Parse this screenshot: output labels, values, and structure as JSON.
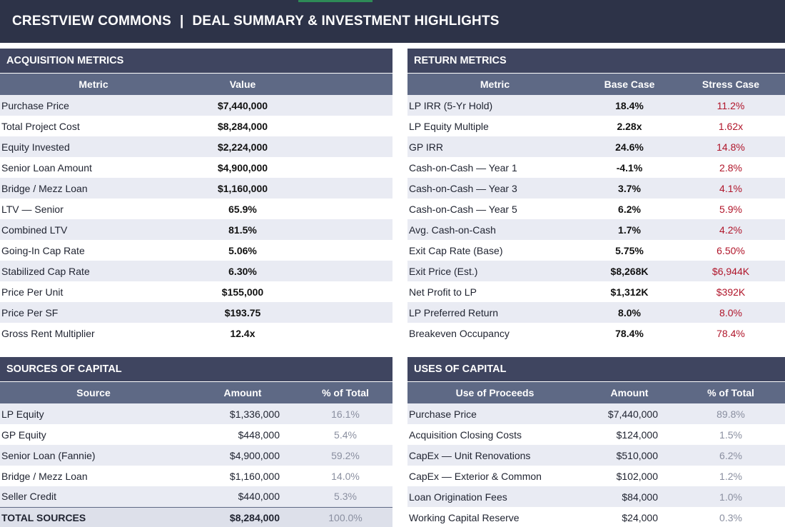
{
  "header": {
    "property": "CRESTVIEW COMMONS",
    "separator": "|",
    "subtitle": "DEAL SUMMARY & INVESTMENT HIGHLIGHTS"
  },
  "acquisition": {
    "title": "ACQUISITION METRICS",
    "columns": [
      "Metric",
      "Value"
    ],
    "rows": [
      [
        "Purchase Price",
        "$7,440,000"
      ],
      [
        "Total Project Cost",
        "$8,284,000"
      ],
      [
        "Equity Invested",
        "$2,224,000"
      ],
      [
        "Senior Loan Amount",
        "$4,900,000"
      ],
      [
        "Bridge / Mezz Loan",
        "$1,160,000"
      ],
      [
        "LTV — Senior",
        "65.9%"
      ],
      [
        "Combined LTV",
        "81.5%"
      ],
      [
        "Going-In Cap Rate",
        "5.06%"
      ],
      [
        "Stabilized Cap Rate",
        "6.30%"
      ],
      [
        "Price Per Unit",
        "$155,000"
      ],
      [
        "Price Per SF",
        "$193.75"
      ],
      [
        "Gross Rent Multiplier",
        "12.4x"
      ]
    ]
  },
  "returns": {
    "title": "RETURN METRICS",
    "columns": [
      "Metric",
      "Base Case",
      "Stress Case"
    ],
    "rows": [
      [
        "LP IRR (5-Yr Hold)",
        "18.4%",
        "11.2%"
      ],
      [
        "LP Equity Multiple",
        "2.28x",
        "1.62x"
      ],
      [
        "GP IRR",
        "24.6%",
        "14.8%"
      ],
      [
        "Cash-on-Cash — Year 1",
        "-4.1%",
        "2.8%"
      ],
      [
        "Cash-on-Cash — Year 3",
        "3.7%",
        "4.1%"
      ],
      [
        "Cash-on-Cash — Year 5",
        "6.2%",
        "5.9%"
      ],
      [
        "Avg. Cash-on-Cash",
        "1.7%",
        "4.2%"
      ],
      [
        "Exit Cap Rate (Base)",
        "5.75%",
        "6.50%"
      ],
      [
        "Exit Price (Est.)",
        "$8,268K",
        "$6,944K"
      ],
      [
        "Net Profit to LP",
        "$1,312K",
        "$392K"
      ],
      [
        "LP Preferred Return",
        "8.0%",
        "8.0%"
      ],
      [
        "Breakeven Occupancy",
        "78.4%",
        "78.4%"
      ]
    ]
  },
  "sources": {
    "title": "SOURCES OF CAPITAL",
    "columns": [
      "Source",
      "Amount",
      "% of Total"
    ],
    "rows": [
      [
        "LP Equity",
        "$1,336,000",
        "16.1%"
      ],
      [
        "GP Equity",
        "$448,000",
        "5.4%"
      ],
      [
        "Senior Loan (Fannie)",
        "$4,900,000",
        "59.2%"
      ],
      [
        "Bridge / Mezz Loan",
        "$1,160,000",
        "14.0%"
      ],
      [
        "Seller Credit",
        "$440,000",
        "5.3%"
      ]
    ],
    "total": [
      "TOTAL SOURCES",
      "$8,284,000",
      "100.0%"
    ]
  },
  "uses": {
    "title": "USES OF CAPITAL",
    "columns": [
      "Use of Proceeds",
      "Amount",
      "% of Total"
    ],
    "rows": [
      [
        "Purchase Price",
        "$7,440,000",
        "89.8%"
      ],
      [
        "Acquisition Closing Costs",
        "$124,000",
        "1.5%"
      ],
      [
        "CapEx — Unit Renovations",
        "$510,000",
        "6.2%"
      ],
      [
        "CapEx — Exterior & Common",
        "$102,000",
        "1.2%"
      ],
      [
        "Loan Origination Fees",
        "$84,000",
        "1.0%"
      ],
      [
        "Working Capital Reserve",
        "$24,000",
        "0.3%"
      ]
    ]
  },
  "colors": {
    "title_bg": "#2d3348",
    "panel_header": "#3f4560",
    "column_header": "#5e6985",
    "stripe": "#e9ebf3",
    "stress_red": "#b0152a",
    "muted_pct": "#8a8fa0"
  }
}
